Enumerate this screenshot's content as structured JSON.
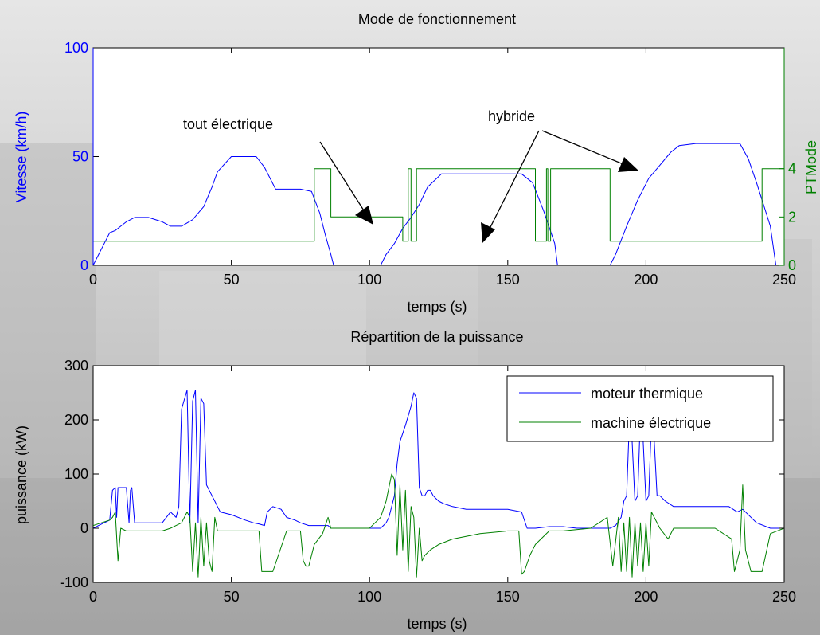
{
  "colors": {
    "blue": "#0000FF",
    "green": "#008000",
    "axis": "#000000"
  },
  "chart_data": [
    {
      "type": "line",
      "title": "Mode de fonctionnement",
      "xlabel": "temps (s)",
      "ylabel": "Vitesse (km/h)",
      "ylabel_right": "PTMode",
      "xlim": [
        0,
        250
      ],
      "ylim": [
        0,
        100
      ],
      "ylim_right": [
        0,
        9
      ],
      "x_ticks": [
        0,
        50,
        100,
        150,
        200,
        250
      ],
      "y_ticks": [
        0,
        50,
        100
      ],
      "y_ticks_right": [
        0,
        2,
        4
      ],
      "grid": false,
      "series": [
        {
          "name": "Vitesse",
          "axis": "left",
          "color": "#0000FF",
          "x": [
            0,
            2,
            4,
            6,
            8,
            10,
            12,
            15,
            20,
            25,
            28,
            32,
            36,
            40,
            43,
            45,
            50,
            55,
            59,
            62,
            66,
            70,
            75,
            79,
            82,
            84,
            86,
            87,
            103,
            104,
            106,
            109,
            112,
            115,
            118,
            121,
            126,
            130,
            135,
            140,
            145,
            150,
            155,
            159,
            163,
            167,
            168,
            186,
            187,
            189,
            193,
            197,
            201,
            205,
            209,
            212,
            218,
            225,
            230,
            234,
            237,
            240,
            245,
            247,
            250
          ],
          "y": [
            0,
            5,
            10,
            15,
            16,
            18,
            20,
            22,
            22,
            20,
            18,
            18,
            21,
            27,
            36,
            43,
            50,
            50,
            50,
            45,
            35,
            35,
            35,
            34,
            24,
            14,
            5,
            0,
            0,
            0,
            5,
            10,
            17,
            22,
            28,
            36,
            42,
            42,
            42,
            42,
            42,
            42,
            42,
            38,
            25,
            10,
            0,
            0,
            0,
            5,
            18,
            30,
            40,
            46,
            52,
            55,
            56,
            56,
            56,
            56,
            49,
            38,
            18,
            0,
            0
          ]
        },
        {
          "name": "PTMode",
          "axis": "right",
          "color": "#008000",
          "step": true,
          "x": [
            0,
            80,
            80,
            86,
            86,
            112,
            112,
            114,
            114,
            115,
            115,
            117,
            117,
            160,
            160,
            164,
            164,
            164.5,
            164.5,
            165.5,
            165.5,
            166,
            166,
            187,
            187,
            242,
            242,
            250
          ],
          "y": [
            1,
            1,
            4,
            4,
            2,
            2,
            1,
            1,
            4,
            4,
            1,
            1,
            4,
            4,
            1,
            1,
            4,
            4,
            1,
            1,
            4,
            4,
            4,
            4,
            1,
            1,
            4,
            4
          ]
        }
      ],
      "annotations": [
        {
          "text": "tout électrique"
        },
        {
          "text": "hybride"
        }
      ]
    },
    {
      "type": "line",
      "title": "Répartition de la puissance",
      "xlabel": "temps (s)",
      "ylabel": "puissance (kW)",
      "xlim": [
        0,
        250
      ],
      "ylim": [
        -100,
        300
      ],
      "x_ticks": [
        0,
        50,
        100,
        150,
        200,
        250
      ],
      "y_ticks": [
        -100,
        0,
        100,
        200,
        300
      ],
      "grid": false,
      "legend": "top-right",
      "series": [
        {
          "name": "moteur thermique",
          "color": "#0000FF",
          "x": [
            0,
            2,
            4,
            6,
            7,
            8,
            8.5,
            9,
            10,
            12,
            13,
            13.5,
            14,
            15,
            20,
            25,
            28,
            30,
            31,
            32,
            34,
            35,
            36,
            37,
            38,
            39,
            40,
            41,
            42,
            43,
            44,
            45,
            46,
            50,
            55,
            58,
            60,
            62,
            63,
            65,
            68,
            70,
            73,
            75,
            78,
            80,
            82,
            84,
            85,
            86,
            100,
            104,
            105,
            106,
            107,
            108,
            109,
            110,
            111,
            113,
            115,
            116,
            117,
            118,
            119,
            120,
            121,
            122,
            123,
            124,
            125,
            127,
            130,
            135,
            140,
            145,
            150,
            155,
            157,
            160,
            165,
            170,
            175,
            185,
            187,
            189,
            191,
            192,
            193,
            194,
            195,
            196,
            197,
            198,
            199,
            200,
            201,
            202,
            203,
            204,
            205,
            207,
            210,
            215,
            220,
            225,
            230,
            233,
            235,
            240,
            245,
            250
          ],
          "y": [
            0,
            5,
            10,
            15,
            70,
            75,
            20,
            75,
            75,
            75,
            10,
            70,
            75,
            10,
            10,
            10,
            30,
            20,
            40,
            220,
            255,
            10,
            235,
            255,
            10,
            240,
            230,
            80,
            70,
            60,
            50,
            40,
            30,
            25,
            15,
            10,
            8,
            5,
            30,
            40,
            35,
            20,
            15,
            10,
            5,
            5,
            5,
            5,
            5,
            0,
            0,
            0,
            5,
            10,
            20,
            40,
            60,
            120,
            160,
            190,
            225,
            250,
            240,
            75,
            60,
            60,
            70,
            70,
            60,
            55,
            50,
            45,
            40,
            35,
            35,
            35,
            35,
            30,
            0,
            0,
            3,
            3,
            0,
            0,
            0,
            5,
            20,
            50,
            60,
            200,
            160,
            50,
            60,
            210,
            160,
            50,
            60,
            200,
            160,
            60,
            60,
            50,
            40,
            40,
            40,
            40,
            40,
            30,
            35,
            10,
            0,
            0
          ]
        },
        {
          "name": "machine électrique",
          "color": "#008000",
          "x": [
            0,
            3,
            6,
            7,
            8,
            9,
            10,
            12,
            14,
            16,
            20,
            25,
            28,
            30,
            32,
            33,
            34,
            35,
            36,
            37,
            38,
            39,
            40,
            41,
            42,
            43,
            44,
            45,
            50,
            55,
            58,
            60,
            61,
            62,
            65,
            70,
            75,
            76,
            77,
            78,
            80,
            83,
            85,
            86,
            100,
            102,
            104,
            106,
            108,
            109,
            110,
            111,
            112,
            113,
            114,
            115,
            116,
            117,
            118,
            119,
            120,
            122,
            125,
            130,
            140,
            150,
            154,
            155,
            156,
            158,
            160,
            165,
            170,
            180,
            186,
            188,
            190,
            191,
            192,
            193,
            194,
            195,
            196,
            197,
            198,
            199,
            200,
            201,
            202,
            205,
            208,
            210,
            215,
            225,
            231,
            232,
            234,
            235,
            236,
            238,
            240,
            242,
            245,
            250
          ],
          "y": [
            5,
            10,
            15,
            20,
            30,
            -60,
            0,
            -5,
            -5,
            -5,
            -5,
            -5,
            0,
            5,
            10,
            20,
            30,
            20,
            -80,
            10,
            -90,
            20,
            -70,
            10,
            -60,
            -80,
            20,
            -5,
            -5,
            -5,
            -5,
            -5,
            -80,
            -80,
            -80,
            -5,
            -5,
            -60,
            -70,
            -70,
            -30,
            -10,
            20,
            0,
            0,
            10,
            20,
            50,
            100,
            90,
            -50,
            80,
            -40,
            70,
            -80,
            40,
            20,
            -90,
            0,
            -60,
            -50,
            -40,
            -30,
            -20,
            -10,
            -5,
            -5,
            -85,
            -80,
            -50,
            -30,
            -5,
            -5,
            0,
            20,
            -70,
            20,
            -80,
            10,
            -80,
            20,
            -90,
            10,
            -70,
            10,
            -80,
            10,
            -70,
            30,
            0,
            -20,
            0,
            0,
            0,
            -20,
            -80,
            -40,
            80,
            -40,
            -80,
            -80,
            -80,
            -10,
            0
          ]
        }
      ]
    }
  ]
}
